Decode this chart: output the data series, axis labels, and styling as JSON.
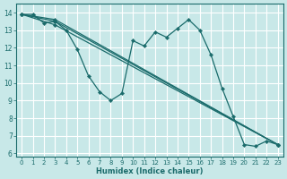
{
  "background_color": "#c8e8e8",
  "grid_color": "#ffffff",
  "line_color": "#1a6b6b",
  "marker_color": "#1a6b6b",
  "xlabel": "Humidex (Indice chaleur)",
  "xlim": [
    -0.5,
    23.5
  ],
  "ylim": [
    5.8,
    14.5
  ],
  "xticks": [
    0,
    1,
    2,
    3,
    4,
    5,
    6,
    7,
    8,
    9,
    10,
    11,
    12,
    13,
    14,
    15,
    16,
    17,
    18,
    19,
    20,
    21,
    22,
    23
  ],
  "yticks": [
    6,
    7,
    8,
    9,
    10,
    11,
    12,
    13,
    14
  ],
  "series": [
    {
      "x": [
        0,
        1,
        2,
        3,
        4,
        5,
        6,
        7,
        8,
        9,
        10,
        11,
        12,
        13,
        14,
        15,
        16,
        17,
        18,
        19,
        20,
        21,
        22,
        23
      ],
      "y": [
        13.9,
        13.9,
        13.4,
        13.5,
        13.0,
        11.9,
        10.4,
        9.5,
        9.0,
        9.4,
        12.4,
        12.1,
        12.9,
        12.6,
        13.1,
        13.6,
        13.0,
        11.6,
        9.7,
        8.1,
        6.5,
        6.4,
        6.7,
        6.5
      ]
    },
    {
      "x": [
        0,
        3,
        23
      ],
      "y": [
        13.9,
        13.3,
        6.5
      ]
    },
    {
      "x": [
        0,
        3,
        23
      ],
      "y": [
        13.9,
        13.5,
        6.5
      ]
    },
    {
      "x": [
        0,
        3,
        23
      ],
      "y": [
        13.9,
        13.6,
        6.5
      ]
    }
  ]
}
